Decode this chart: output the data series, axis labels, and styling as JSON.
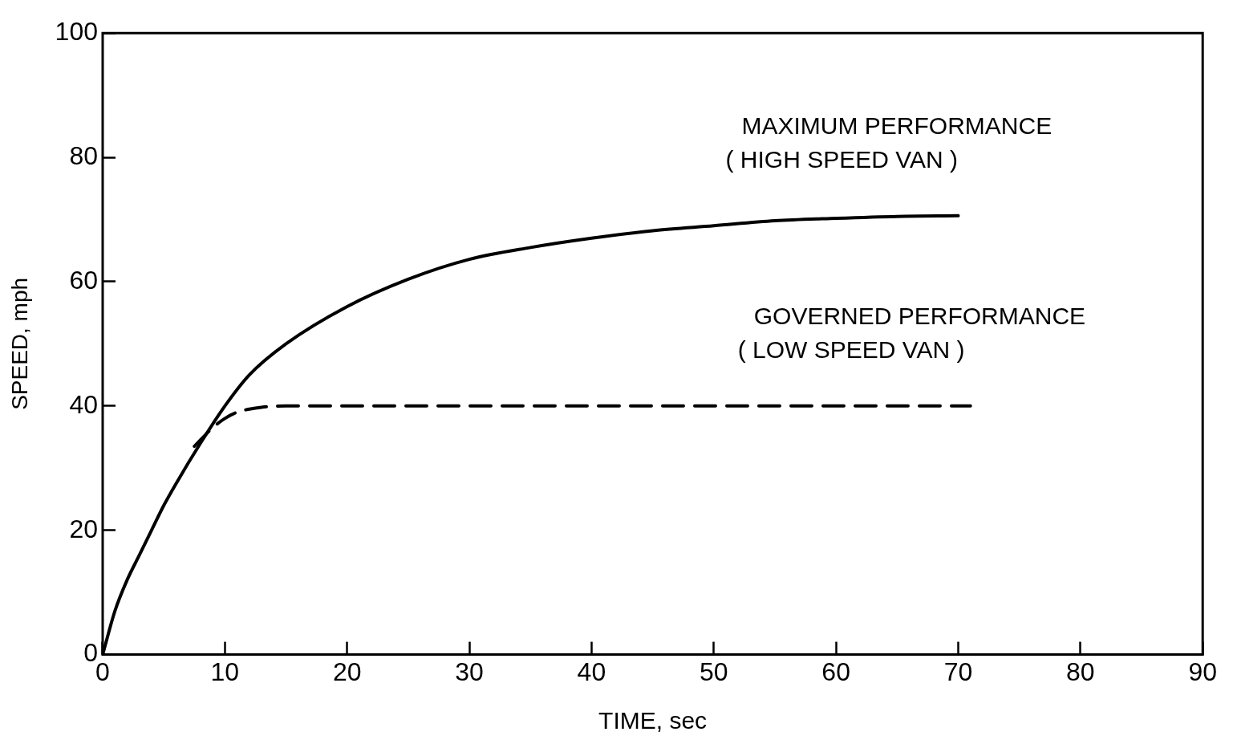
{
  "chart_data": {
    "type": "line",
    "xlabel": "TIME, sec",
    "ylabel": "SPEED, mph",
    "xlim": [
      0,
      90
    ],
    "xticks": [
      0,
      10,
      20,
      30,
      40,
      50,
      60,
      70,
      80,
      90
    ],
    "ylim": [
      0,
      100
    ],
    "yticks": [
      0,
      20,
      40,
      60,
      80,
      100
    ],
    "grid": false,
    "legend": false,
    "marker": "none",
    "series": [
      {
        "name": "MAXIMUM PERFORMANCE\n( HIGH SPEED VAN )",
        "color": "#000000",
        "line_style": "solid",
        "x": [
          0,
          1,
          2,
          3,
          4,
          5,
          6,
          8,
          10,
          12,
          15,
          20,
          25,
          30,
          35,
          40,
          45,
          50,
          55,
          60,
          65,
          70
        ],
        "values": [
          0,
          7,
          12,
          16,
          20,
          24,
          27.5,
          34,
          40,
          45,
          50,
          56,
          60.4,
          63.6,
          65.5,
          67,
          68.2,
          69,
          69.8,
          70.2,
          70.5,
          70.6
        ]
      },
      {
        "name": "GOVERNED PERFORMANCE\n( LOW SPEED VAN )",
        "color": "#000000",
        "line_style": "dashed",
        "x": [
          7.5,
          9,
          10,
          11,
          12,
          13,
          15,
          20,
          30,
          40,
          50,
          60,
          71
        ],
        "values": [
          33.5,
          36.5,
          38,
          39,
          39.5,
          39.8,
          40,
          40,
          40,
          40,
          40,
          40,
          40
        ]
      }
    ]
  }
}
